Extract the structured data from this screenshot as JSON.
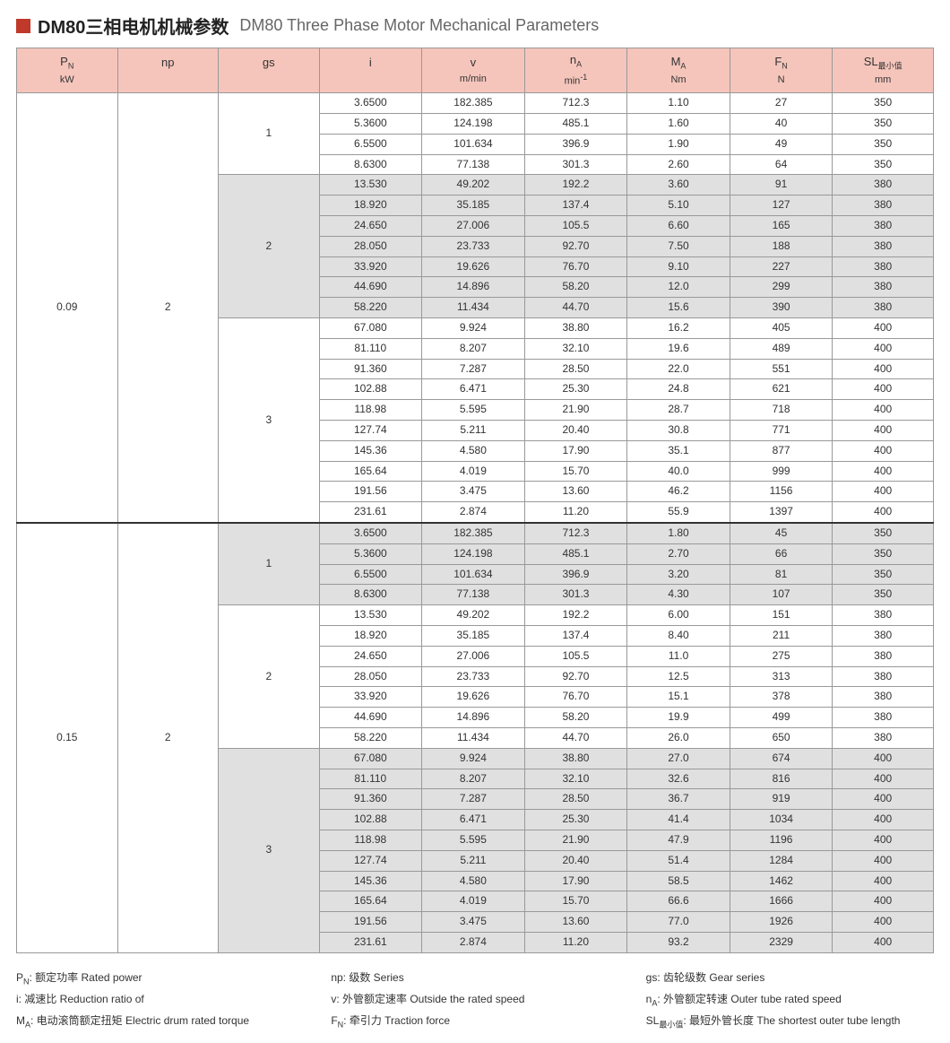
{
  "title": {
    "cn": "DM80三相电机机械参数",
    "en": "DM80 Three Phase Motor Mechanical Parameters"
  },
  "columns": [
    {
      "main_html": "P<span class='sub'>N</span>",
      "unit": "kW"
    },
    {
      "main_html": "np",
      "unit": ""
    },
    {
      "main_html": "gs",
      "unit": ""
    },
    {
      "main_html": "i",
      "unit": ""
    },
    {
      "main_html": "v",
      "unit": "m/min"
    },
    {
      "main_html": "n<span class='sub'>A</span>",
      "unit_html": "min<span class='sup'>-1</span>"
    },
    {
      "main_html": "M<span class='sub'>A</span>",
      "unit": "Nm"
    },
    {
      "main_html": "F<span class='sub'>N</span>",
      "unit": "N"
    },
    {
      "main_html": "SL<span class='sub'>最小值</span>",
      "unit": "mm"
    }
  ],
  "col_widths_pct": [
    11,
    11,
    11,
    11.2,
    11.2,
    11.2,
    11.2,
    11.2,
    11
  ],
  "header_bg": "#f5c5bb",
  "shade_bg": "#e0e0e0",
  "blocks": [
    {
      "pn": "0.09",
      "np": "2",
      "groups": [
        {
          "gs": "1",
          "shade": false,
          "rows": [
            [
              "3.6500",
              "182.385",
              "712.3",
              "1.10",
              "27",
              "350"
            ],
            [
              "5.3600",
              "124.198",
              "485.1",
              "1.60",
              "40",
              "350"
            ],
            [
              "6.5500",
              "101.634",
              "396.9",
              "1.90",
              "49",
              "350"
            ],
            [
              "8.6300",
              "77.138",
              "301.3",
              "2.60",
              "64",
              "350"
            ]
          ]
        },
        {
          "gs": "2",
          "shade": true,
          "rows": [
            [
              "13.530",
              "49.202",
              "192.2",
              "3.60",
              "91",
              "380"
            ],
            [
              "18.920",
              "35.185",
              "137.4",
              "5.10",
              "127",
              "380"
            ],
            [
              "24.650",
              "27.006",
              "105.5",
              "6.60",
              "165",
              "380"
            ],
            [
              "28.050",
              "23.733",
              "92.70",
              "7.50",
              "188",
              "380"
            ],
            [
              "33.920",
              "19.626",
              "76.70",
              "9.10",
              "227",
              "380"
            ],
            [
              "44.690",
              "14.896",
              "58.20",
              "12.0",
              "299",
              "380"
            ],
            [
              "58.220",
              "11.434",
              "44.70",
              "15.6",
              "390",
              "380"
            ]
          ]
        },
        {
          "gs": "3",
          "shade": false,
          "rows": [
            [
              "67.080",
              "9.924",
              "38.80",
              "16.2",
              "405",
              "400"
            ],
            [
              "81.110",
              "8.207",
              "32.10",
              "19.6",
              "489",
              "400"
            ],
            [
              "91.360",
              "7.287",
              "28.50",
              "22.0",
              "551",
              "400"
            ],
            [
              "102.88",
              "6.471",
              "25.30",
              "24.8",
              "621",
              "400"
            ],
            [
              "118.98",
              "5.595",
              "21.90",
              "28.7",
              "718",
              "400"
            ],
            [
              "127.74",
              "5.211",
              "20.40",
              "30.8",
              "771",
              "400"
            ],
            [
              "145.36",
              "4.580",
              "17.90",
              "35.1",
              "877",
              "400"
            ],
            [
              "165.64",
              "4.019",
              "15.70",
              "40.0",
              "999",
              "400"
            ],
            [
              "191.56",
              "3.475",
              "13.60",
              "46.2",
              "1156",
              "400"
            ],
            [
              "231.61",
              "2.874",
              "11.20",
              "55.9",
              "1397",
              "400"
            ]
          ]
        }
      ]
    },
    {
      "pn": "0.15",
      "np": "2",
      "groups": [
        {
          "gs": "1",
          "shade": true,
          "rows": [
            [
              "3.6500",
              "182.385",
              "712.3",
              "1.80",
              "45",
              "350"
            ],
            [
              "5.3600",
              "124.198",
              "485.1",
              "2.70",
              "66",
              "350"
            ],
            [
              "6.5500",
              "101.634",
              "396.9",
              "3.20",
              "81",
              "350"
            ],
            [
              "8.6300",
              "77.138",
              "301.3",
              "4.30",
              "107",
              "350"
            ]
          ]
        },
        {
          "gs": "2",
          "shade": false,
          "rows": [
            [
              "13.530",
              "49.202",
              "192.2",
              "6.00",
              "151",
              "380"
            ],
            [
              "18.920",
              "35.185",
              "137.4",
              "8.40",
              "211",
              "380"
            ],
            [
              "24.650",
              "27.006",
              "105.5",
              "11.0",
              "275",
              "380"
            ],
            [
              "28.050",
              "23.733",
              "92.70",
              "12.5",
              "313",
              "380"
            ],
            [
              "33.920",
              "19.626",
              "76.70",
              "15.1",
              "378",
              "380"
            ],
            [
              "44.690",
              "14.896",
              "58.20",
              "19.9",
              "499",
              "380"
            ],
            [
              "58.220",
              "11.434",
              "44.70",
              "26.0",
              "650",
              "380"
            ]
          ]
        },
        {
          "gs": "3",
          "shade": true,
          "rows": [
            [
              "67.080",
              "9.924",
              "38.80",
              "27.0",
              "674",
              "400"
            ],
            [
              "81.110",
              "8.207",
              "32.10",
              "32.6",
              "816",
              "400"
            ],
            [
              "91.360",
              "7.287",
              "28.50",
              "36.7",
              "919",
              "400"
            ],
            [
              "102.88",
              "6.471",
              "25.30",
              "41.4",
              "1034",
              "400"
            ],
            [
              "118.98",
              "5.595",
              "21.90",
              "47.9",
              "1196",
              "400"
            ],
            [
              "127.74",
              "5.211",
              "20.40",
              "51.4",
              "1284",
              "400"
            ],
            [
              "145.36",
              "4.580",
              "17.90",
              "58.5",
              "1462",
              "400"
            ],
            [
              "165.64",
              "4.019",
              "15.70",
              "66.6",
              "1666",
              "400"
            ],
            [
              "191.56",
              "3.475",
              "13.60",
              "77.0",
              "1926",
              "400"
            ],
            [
              "231.61",
              "2.874",
              "11.20",
              "93.2",
              "2329",
              "400"
            ]
          ]
        }
      ]
    }
  ],
  "legend": [
    {
      "sym_html": "P<span class='sub'>N</span>",
      "txt": "额定功率 Rated power"
    },
    {
      "sym_html": "np",
      "txt": "级数 Series"
    },
    {
      "sym_html": "gs",
      "txt": "齿轮级数 Gear series"
    },
    {
      "sym_html": "i",
      "txt": "减速比 Reduction ratio of"
    },
    {
      "sym_html": "v",
      "txt": "外管额定速率 Outside the rated speed"
    },
    {
      "sym_html": "n<span class='sub'>A</span>",
      "txt": "外管额定转速 Outer tube rated speed"
    },
    {
      "sym_html": "M<span class='sub'>A</span>",
      "txt": "电动滚筒额定扭矩 Electric drum rated torque"
    },
    {
      "sym_html": "F<span class='sub'>N</span>",
      "txt": "牵引力 Traction force"
    },
    {
      "sym_html": "SL<span class='sub'>最小值</span>",
      "txt": "最短外管长度 The shortest outer tube length"
    }
  ]
}
